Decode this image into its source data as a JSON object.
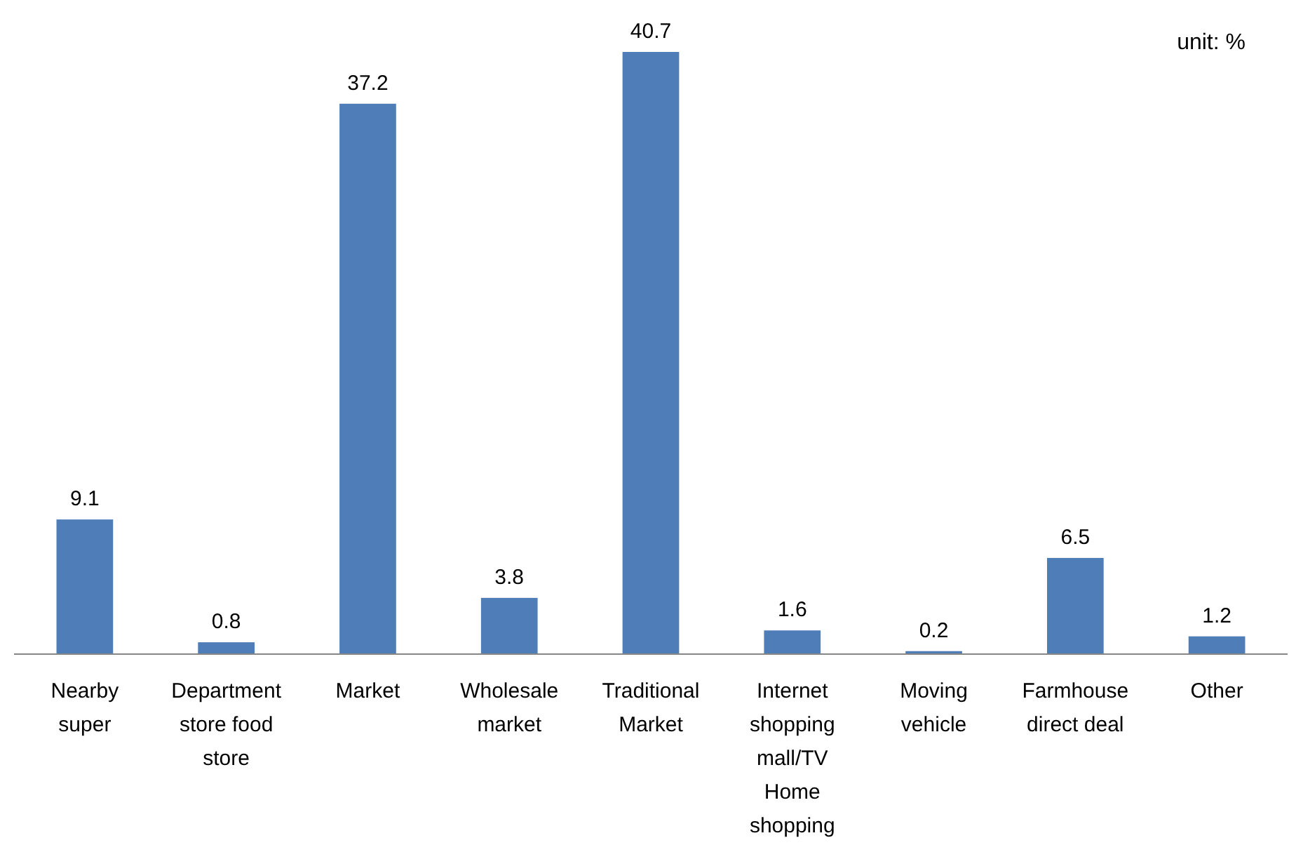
{
  "chart_data": {
    "type": "bar",
    "categories": [
      "Nearby super",
      "Department store food store",
      "Market",
      "Wholesale market",
      "Traditional Market",
      "Internet shopping mall/TV Home shopping",
      "Moving vehicle",
      "Farmhouse direct deal",
      "Other"
    ],
    "values": [
      9.1,
      0.8,
      37.2,
      3.8,
      40.7,
      1.6,
      0.2,
      6.5,
      1.2
    ],
    "color": "#4f7db8",
    "data_labels": true,
    "annotations": [
      "unit: %"
    ]
  }
}
